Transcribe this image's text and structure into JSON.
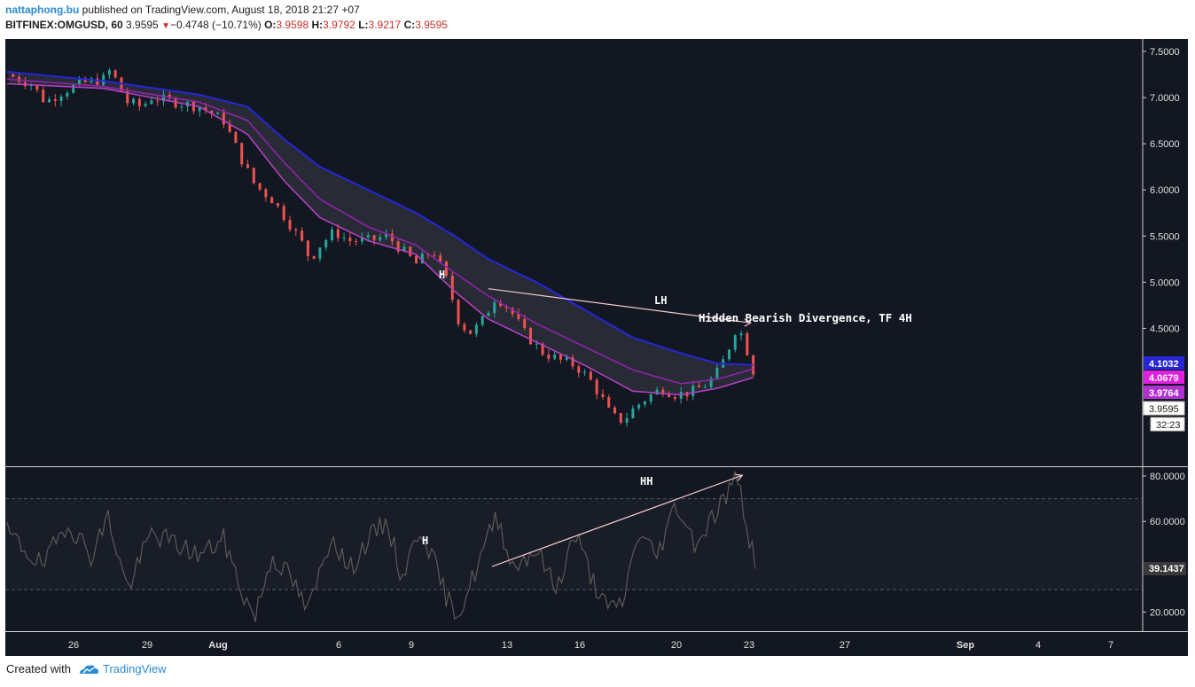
{
  "header": {
    "author": "nattaphong.bu",
    "published_text": " published on TradingView.com, August 18, 2018 21:27 +07",
    "symbol": "BITFINEX:OMGUSD, 60",
    "last": "3.9595",
    "change": "−0.4748 (−10.71%)",
    "o_label": "O:",
    "o_value": "3.9598",
    "h_label": "H:",
    "h_value": "3.9792",
    "l_label": "L:",
    "l_value": "3.9217",
    "c_label": "C:",
    "c_value": "3.9595"
  },
  "footer": {
    "created_with": "Created with",
    "brand": "TradingView"
  },
  "colors": {
    "bg": "#131722",
    "up": "#26a69a",
    "down": "#ef5350",
    "ema_blue": "#2626d9",
    "ema_purple1": "#8e24aa",
    "ema_purple2": "#b040c0",
    "rsi": "#5a5a5a",
    "annotation_arrow": "#f2c7cf"
  },
  "chart_data": [
    {
      "type": "candlestick",
      "panel": "price",
      "y_axis_ticks": [
        "7.5000",
        "7.0000",
        "6.5000",
        "6.0000",
        "5.5000",
        "5.0000",
        "4.5000"
      ],
      "ylim": [
        3.4,
        7.75
      ],
      "x_tick_labels": [
        "26",
        "29",
        "Aug",
        "6",
        "9",
        "13",
        "16",
        "20",
        "23",
        "27",
        "Sep",
        "4",
        "7"
      ],
      "price_path": [
        {
          "d": 0,
          "v": 7.25
        },
        {
          "d": 1,
          "v": 7.15
        },
        {
          "d": 1.6,
          "v": 6.95
        },
        {
          "d": 2.2,
          "v": 7.05
        },
        {
          "d": 3,
          "v": 7.15
        },
        {
          "d": 4,
          "v": 7.2
        },
        {
          "d": 4.3,
          "v": 7.3
        },
        {
          "d": 5,
          "v": 6.95
        },
        {
          "d": 5.6,
          "v": 6.9
        },
        {
          "d": 6,
          "v": 7.0
        },
        {
          "d": 7,
          "v": 6.95
        },
        {
          "d": 8,
          "v": 6.9
        },
        {
          "d": 9,
          "v": 6.75
        },
        {
          "d": 9.8,
          "v": 6.3
        },
        {
          "d": 10.3,
          "v": 6.05
        },
        {
          "d": 11,
          "v": 5.9
        },
        {
          "d": 11.7,
          "v": 5.65
        },
        {
          "d": 12.2,
          "v": 5.45
        },
        {
          "d": 12.6,
          "v": 5.25
        },
        {
          "d": 13,
          "v": 5.4
        },
        {
          "d": 13.6,
          "v": 5.55
        },
        {
          "d": 14.2,
          "v": 5.45
        },
        {
          "d": 15,
          "v": 5.45
        },
        {
          "d": 15.8,
          "v": 5.5
        },
        {
          "d": 16.4,
          "v": 5.35
        },
        {
          "d": 17,
          "v": 5.2
        },
        {
          "d": 17.7,
          "v": 5.35
        },
        {
          "d": 18.3,
          "v": 5.0
        },
        {
          "d": 18.8,
          "v": 4.55
        },
        {
          "d": 19.3,
          "v": 4.45
        },
        {
          "d": 19.8,
          "v": 4.6
        },
        {
          "d": 20.3,
          "v": 4.85
        },
        {
          "d": 20.9,
          "v": 4.7
        },
        {
          "d": 21.5,
          "v": 4.45
        },
        {
          "d": 22.2,
          "v": 4.25
        },
        {
          "d": 23,
          "v": 4.15
        },
        {
          "d": 23.6,
          "v": 4.1
        },
        {
          "d": 24.2,
          "v": 3.95
        },
        {
          "d": 24.7,
          "v": 3.75
        },
        {
          "d": 25.1,
          "v": 3.55
        },
        {
          "d": 25.6,
          "v": 3.5
        },
        {
          "d": 26.1,
          "v": 3.65
        },
        {
          "d": 26.6,
          "v": 3.75
        },
        {
          "d": 27.2,
          "v": 3.85
        },
        {
          "d": 27.8,
          "v": 3.78
        },
        {
          "d": 28.5,
          "v": 3.82
        },
        {
          "d": 29.1,
          "v": 3.9
        },
        {
          "d": 29.6,
          "v": 4.05
        },
        {
          "d": 30.0,
          "v": 4.3
        },
        {
          "d": 30.35,
          "v": 4.55
        },
        {
          "d": 30.7,
          "v": 4.3
        },
        {
          "d": 31.1,
          "v": 3.96
        }
      ],
      "ema_bands": [
        {
          "name": "",
          "color": "#2626d9",
          "points": [
            {
              "d": 0,
              "v": 7.28
            },
            {
              "d": 4,
              "v": 7.18
            },
            {
              "d": 8,
              "v": 7.03
            },
            {
              "d": 10,
              "v": 6.9
            },
            {
              "d": 11.5,
              "v": 6.55
            },
            {
              "d": 13,
              "v": 6.25
            },
            {
              "d": 15,
              "v": 6.0
            },
            {
              "d": 17,
              "v": 5.75
            },
            {
              "d": 18.6,
              "v": 5.5
            },
            {
              "d": 20,
              "v": 5.25
            },
            {
              "d": 22,
              "v": 5.0
            },
            {
              "d": 24,
              "v": 4.7
            },
            {
              "d": 26,
              "v": 4.4
            },
            {
              "d": 28,
              "v": 4.23
            },
            {
              "d": 29.5,
              "v": 4.12
            },
            {
              "d": 31.1,
              "v": 4.1032
            }
          ]
        },
        {
          "name": "",
          "color": "#8e24aa",
          "points": [
            {
              "d": 0,
              "v": 7.2
            },
            {
              "d": 4,
              "v": 7.12
            },
            {
              "d": 8,
              "v": 6.95
            },
            {
              "d": 10,
              "v": 6.75
            },
            {
              "d": 11.5,
              "v": 6.3
            },
            {
              "d": 13,
              "v": 5.9
            },
            {
              "d": 15,
              "v": 5.6
            },
            {
              "d": 17,
              "v": 5.4
            },
            {
              "d": 18.6,
              "v": 5.1
            },
            {
              "d": 20,
              "v": 4.85
            },
            {
              "d": 22,
              "v": 4.55
            },
            {
              "d": 24,
              "v": 4.3
            },
            {
              "d": 26,
              "v": 4.05
            },
            {
              "d": 28,
              "v": 3.9
            },
            {
              "d": 29.5,
              "v": 3.95
            },
            {
              "d": 31.1,
              "v": 4.0679
            }
          ]
        },
        {
          "name": "",
          "color": "#b040c0",
          "points": [
            {
              "d": 0,
              "v": 7.15
            },
            {
              "d": 4,
              "v": 7.1
            },
            {
              "d": 8,
              "v": 6.9
            },
            {
              "d": 10,
              "v": 6.6
            },
            {
              "d": 11.5,
              "v": 6.1
            },
            {
              "d": 13,
              "v": 5.7
            },
            {
              "d": 15,
              "v": 5.45
            },
            {
              "d": 17,
              "v": 5.3
            },
            {
              "d": 18.6,
              "v": 4.9
            },
            {
              "d": 20,
              "v": 4.6
            },
            {
              "d": 22,
              "v": 4.35
            },
            {
              "d": 24,
              "v": 4.1
            },
            {
              "d": 26,
              "v": 3.82
            },
            {
              "d": 28,
              "v": 3.78
            },
            {
              "d": 29.5,
              "v": 3.85
            },
            {
              "d": 31.1,
              "v": 3.9764
            }
          ]
        }
      ],
      "price_badges": [
        {
          "value": "4.1032",
          "color": "#2626d9"
        },
        {
          "value": "4.0679",
          "color": "#e020e0"
        },
        {
          "value": "3.9764",
          "color": "#b030d0"
        },
        {
          "value": "3.9595",
          "color": "#ffffff"
        },
        {
          "value": "32:23",
          "color": "#ffffff"
        }
      ],
      "annotations": [
        {
          "text": "H",
          "d": 20.35,
          "v": 4.95
        },
        {
          "text": "LH",
          "d": 30.6,
          "v": 4.57
        },
        {
          "text": "Hidden Bearish Divergence, TF 4H"
        }
      ],
      "trend_line": {
        "from": {
          "d": 20.0,
          "v": 4.93
        },
        "to": {
          "d": 30.6,
          "v": 4.57
        }
      }
    },
    {
      "type": "line",
      "panel": "rsi",
      "y_axis_ticks": [
        "80.0000",
        "60.0000",
        "20.0000"
      ],
      "ylim": [
        10,
        85
      ],
      "bands": [
        70,
        30
      ],
      "current_value": "39.1437",
      "rsi_path": [
        {
          "d": 0,
          "v": 55
        },
        {
          "d": 1.5,
          "v": 40
        },
        {
          "d": 2.5,
          "v": 60
        },
        {
          "d": 3.5,
          "v": 45
        },
        {
          "d": 4.2,
          "v": 62
        },
        {
          "d": 5,
          "v": 30
        },
        {
          "d": 6,
          "v": 55
        },
        {
          "d": 7,
          "v": 50
        },
        {
          "d": 8,
          "v": 45
        },
        {
          "d": 9,
          "v": 52
        },
        {
          "d": 9.8,
          "v": 28
        },
        {
          "d": 10.3,
          "v": 18
        },
        {
          "d": 11,
          "v": 45
        },
        {
          "d": 11.8,
          "v": 35
        },
        {
          "d": 12.5,
          "v": 20
        },
        {
          "d": 13.5,
          "v": 55
        },
        {
          "d": 14.2,
          "v": 38
        },
        {
          "d": 15,
          "v": 52
        },
        {
          "d": 15.8,
          "v": 60
        },
        {
          "d": 16.4,
          "v": 35
        },
        {
          "d": 17.2,
          "v": 58
        },
        {
          "d": 18.3,
          "v": 25
        },
        {
          "d": 18.8,
          "v": 20
        },
        {
          "d": 19.6,
          "v": 42
        },
        {
          "d": 20.35,
          "v": 63
        },
        {
          "d": 21,
          "v": 40
        },
        {
          "d": 22,
          "v": 48
        },
        {
          "d": 22.8,
          "v": 30
        },
        {
          "d": 23.6,
          "v": 55
        },
        {
          "d": 24.3,
          "v": 35
        },
        {
          "d": 25,
          "v": 20
        },
        {
          "d": 25.6,
          "v": 25
        },
        {
          "d": 26.2,
          "v": 55
        },
        {
          "d": 27.0,
          "v": 45
        },
        {
          "d": 27.8,
          "v": 68
        },
        {
          "d": 28.6,
          "v": 50
        },
        {
          "d": 29.3,
          "v": 62
        },
        {
          "d": 29.9,
          "v": 72
        },
        {
          "d": 30.35,
          "v": 80
        },
        {
          "d": 30.7,
          "v": 60
        },
        {
          "d": 31.1,
          "v": 39.14
        }
      ],
      "annotations": [
        {
          "text": "H",
          "d": 19.9,
          "v": 42
        },
        {
          "text": "HH",
          "d": 30.6,
          "v": 80
        }
      ],
      "trend_line": {
        "from": {
          "d": 20.0,
          "v": 37
        },
        "to": {
          "d": 30.4,
          "v": 80.5
        }
      }
    }
  ]
}
